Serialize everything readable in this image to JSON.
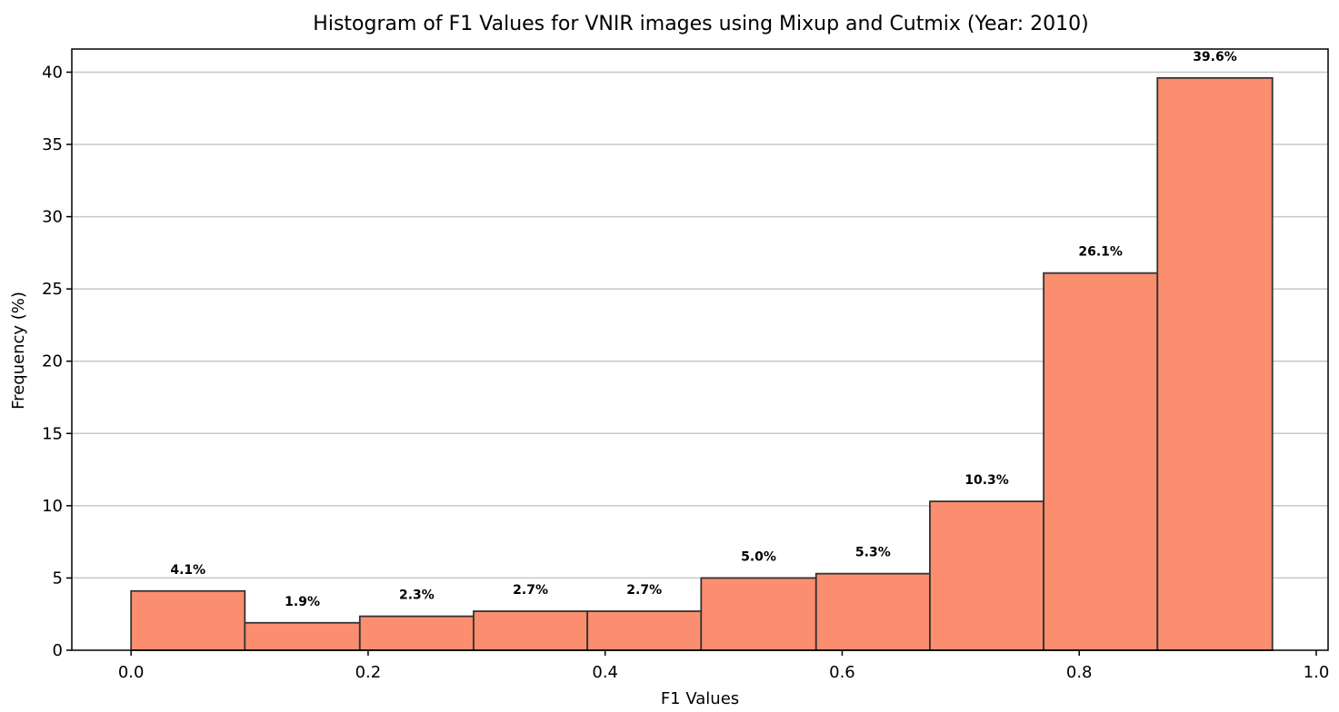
{
  "chart_data": {
    "type": "bar",
    "title": "Histogram of F1 Values for VNIR images using Mixup and Cutmix (Year: 2010)",
    "xlabel": "F1 Values",
    "ylabel": "Frequency (%)",
    "xlim": [
      -0.05,
      1.01
    ],
    "ylim": [
      0,
      41.6
    ],
    "xticks": [
      0.0,
      0.2,
      0.4,
      0.6,
      0.8,
      1.0
    ],
    "xtick_labels": [
      "0.0",
      "0.2",
      "0.4",
      "0.6",
      "0.8",
      "1.0"
    ],
    "yticks": [
      0,
      5,
      10,
      15,
      20,
      25,
      30,
      35,
      40
    ],
    "ytick_labels": [
      "0",
      "5",
      "10",
      "15",
      "20",
      "25",
      "30",
      "35",
      "40"
    ],
    "grid": "y",
    "bar_color": "#FA8E6F",
    "edge_color": "#333333",
    "bins": [
      {
        "x0": 0.0,
        "x1": 0.096,
        "value": 4.1,
        "label": "4.1%"
      },
      {
        "x0": 0.096,
        "x1": 0.193,
        "value": 1.9,
        "label": "1.9%"
      },
      {
        "x0": 0.193,
        "x1": 0.289,
        "value": 2.35,
        "label": "2.3%"
      },
      {
        "x0": 0.289,
        "x1": 0.385,
        "value": 2.7,
        "label": "2.7%"
      },
      {
        "x0": 0.385,
        "x1": 0.481,
        "value": 2.7,
        "label": "2.7%"
      },
      {
        "x0": 0.481,
        "x1": 0.578,
        "value": 5.0,
        "label": "5.0%"
      },
      {
        "x0": 0.578,
        "x1": 0.674,
        "value": 5.3,
        "label": "5.3%"
      },
      {
        "x0": 0.674,
        "x1": 0.77,
        "value": 10.3,
        "label": "10.3%"
      },
      {
        "x0": 0.77,
        "x1": 0.866,
        "value": 26.1,
        "label": "26.1%"
      },
      {
        "x0": 0.866,
        "x1": 0.963,
        "value": 39.6,
        "label": "39.6%"
      }
    ]
  }
}
